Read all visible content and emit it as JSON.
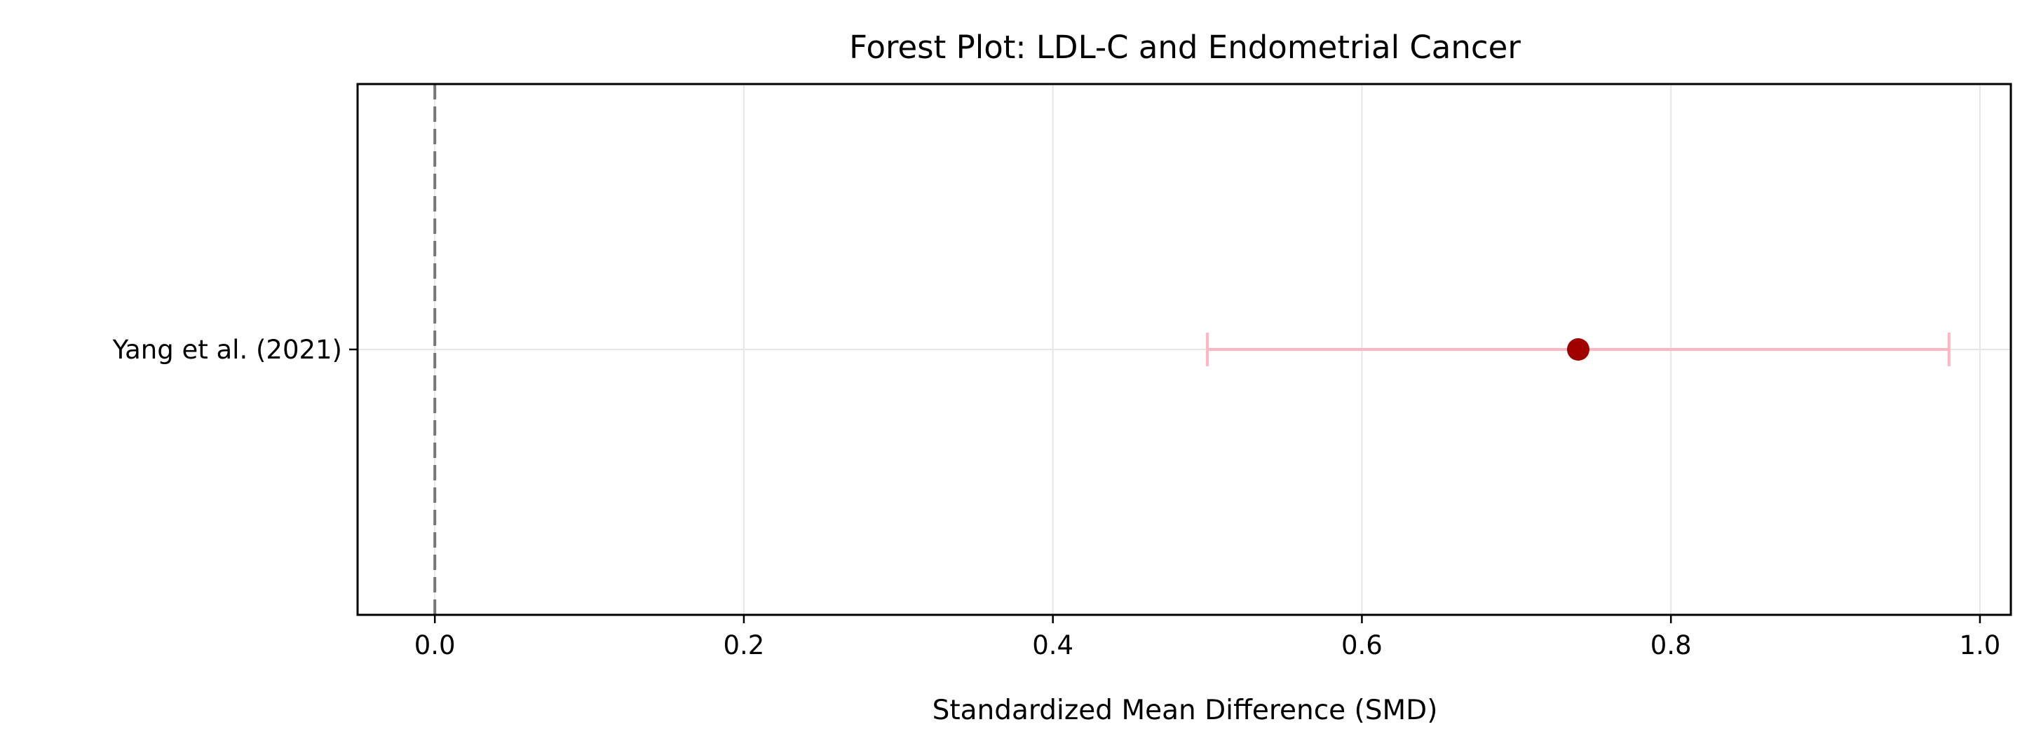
{
  "chart_data": {
    "type": "scatter",
    "title": "Forest Plot: LDL-C and Endometrial Cancer",
    "xlabel": "Standardized Mean Difference (SMD)",
    "ylabel": "",
    "xlim": [
      -0.05,
      1.02
    ],
    "x_ticks": [
      0.0,
      0.2,
      0.4,
      0.6,
      0.8,
      1.0
    ],
    "x_tick_labels": [
      "0.0",
      "0.2",
      "0.4",
      "0.6",
      "0.8",
      "1.0"
    ],
    "grid": true,
    "reference_line": {
      "x": 0.0,
      "style": "dashed"
    },
    "studies": [
      {
        "label": "Yang et al. (2021)",
        "smd": 0.74,
        "ci_lower": 0.5,
        "ci_upper": 0.98
      }
    ],
    "colors": {
      "point": "#a00000",
      "ci": "#ffb6c1",
      "reference": "#777777",
      "grid": "#e6e6e6",
      "axes": "#000000"
    }
  }
}
